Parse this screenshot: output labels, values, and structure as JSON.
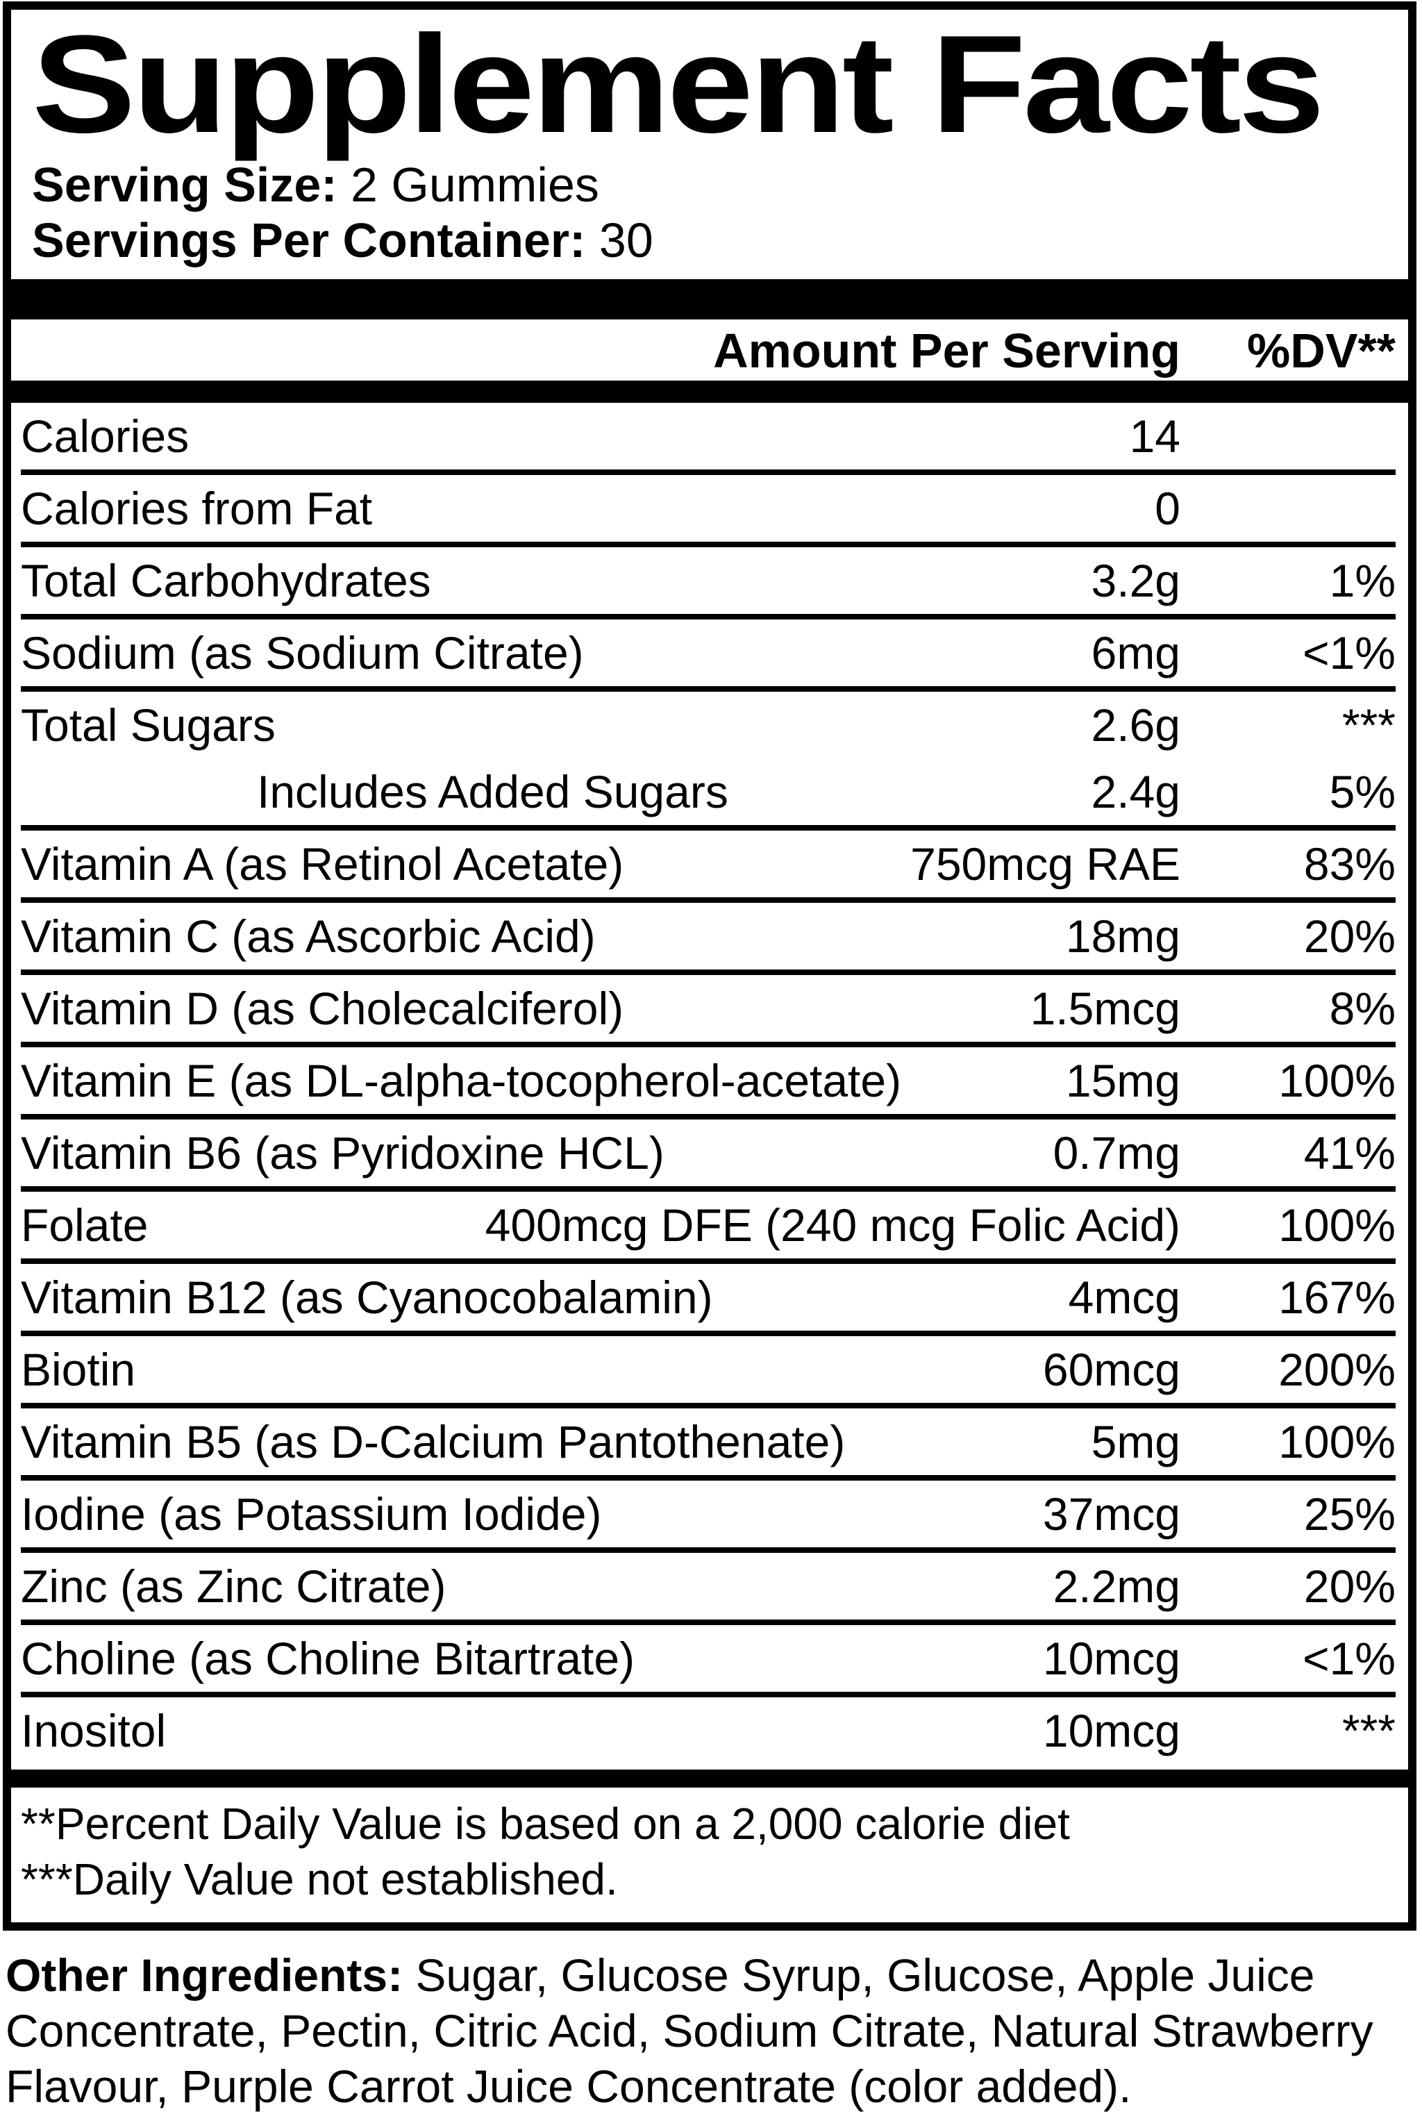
{
  "colors": {
    "ink": "#000000",
    "paper": "#ffffff"
  },
  "label": {
    "title": "Supplement Facts",
    "serving_size_label": "Serving Size:",
    "serving_size_value": " 2 Gummies",
    "servings_per_container_label": "Servings Per Container:",
    "servings_per_container_value": " 30",
    "columns": {
      "amount": "Amount Per Serving",
      "dv": "%DV**"
    },
    "rows": [
      {
        "name": "Calories",
        "amount": "14",
        "dv": "",
        "sep": false,
        "indent": false
      },
      {
        "name": "Calories from Fat",
        "amount": "0",
        "dv": "",
        "sep": true,
        "indent": false
      },
      {
        "name": "Total Carbohydrates",
        "amount": "3.2g",
        "dv": "1%",
        "sep": true,
        "indent": false
      },
      {
        "name": "Sodium (as Sodium Citrate)",
        "amount": "6mg",
        "dv": "<1%",
        "sep": true,
        "indent": false
      },
      {
        "name": "Total Sugars",
        "amount": "2.6g",
        "dv": "***",
        "sep": true,
        "indent": false
      },
      {
        "name": "Includes Added Sugars",
        "amount": "2.4g",
        "dv": "5%",
        "sep": false,
        "indent": true
      },
      {
        "name": "Vitamin A (as Retinol Acetate)",
        "amount": "750mcg RAE",
        "dv": "83%",
        "sep": true,
        "indent": false
      },
      {
        "name": "Vitamin C (as Ascorbic Acid)",
        "amount": "18mg",
        "dv": "20%",
        "sep": true,
        "indent": false
      },
      {
        "name": "Vitamin D (as Cholecalciferol)",
        "amount": "1.5mcg",
        "dv": "8%",
        "sep": true,
        "indent": false
      },
      {
        "name": "Vitamin E (as DL-alpha-tocopherol-acetate)",
        "amount": "15mg",
        "dv": "100%",
        "sep": true,
        "indent": false
      },
      {
        "name": "Vitamin B6 (as Pyridoxine HCL)",
        "amount": "0.7mg",
        "dv": "41%",
        "sep": true,
        "indent": false
      },
      {
        "name": "Folate",
        "amount": "400mcg DFE (240 mcg Folic Acid)",
        "dv": "100%",
        "sep": true,
        "indent": false
      },
      {
        "name": "Vitamin B12 (as Cyanocobalamin)",
        "amount": "4mcg",
        "dv": "167%",
        "sep": true,
        "indent": false
      },
      {
        "name": "Biotin",
        "amount": "60mcg",
        "dv": "200%",
        "sep": true,
        "indent": false
      },
      {
        "name": "Vitamin B5 (as D-Calcium Pantothenate)",
        "amount": "5mg",
        "dv": "100%",
        "sep": true,
        "indent": false
      },
      {
        "name": "Iodine (as Potassium Iodide)",
        "amount": "37mcg",
        "dv": "25%",
        "sep": true,
        "indent": false
      },
      {
        "name": "Zinc (as Zinc Citrate)",
        "amount": "2.2mg",
        "dv": "20%",
        "sep": true,
        "indent": false
      },
      {
        "name": "Choline (as Choline Bitartrate)",
        "amount": "10mcg",
        "dv": "<1%",
        "sep": true,
        "indent": false
      },
      {
        "name": "Inositol",
        "amount": "10mcg",
        "dv": "***",
        "sep": true,
        "indent": false
      }
    ],
    "footnotes": [
      "**Percent Daily Value is based on a 2,000 calorie diet",
      "***Daily Value not established."
    ],
    "other_ingredients_label": "Other Ingredients:",
    "other_ingredients_text": " Sugar, Glucose Syrup, Glucose, Apple Juice Concentrate, Pectin, Citric Acid, Sodium Citrate, Natural Strawberry Flavour, Purple Carrot Juice Concentrate (color added)."
  }
}
